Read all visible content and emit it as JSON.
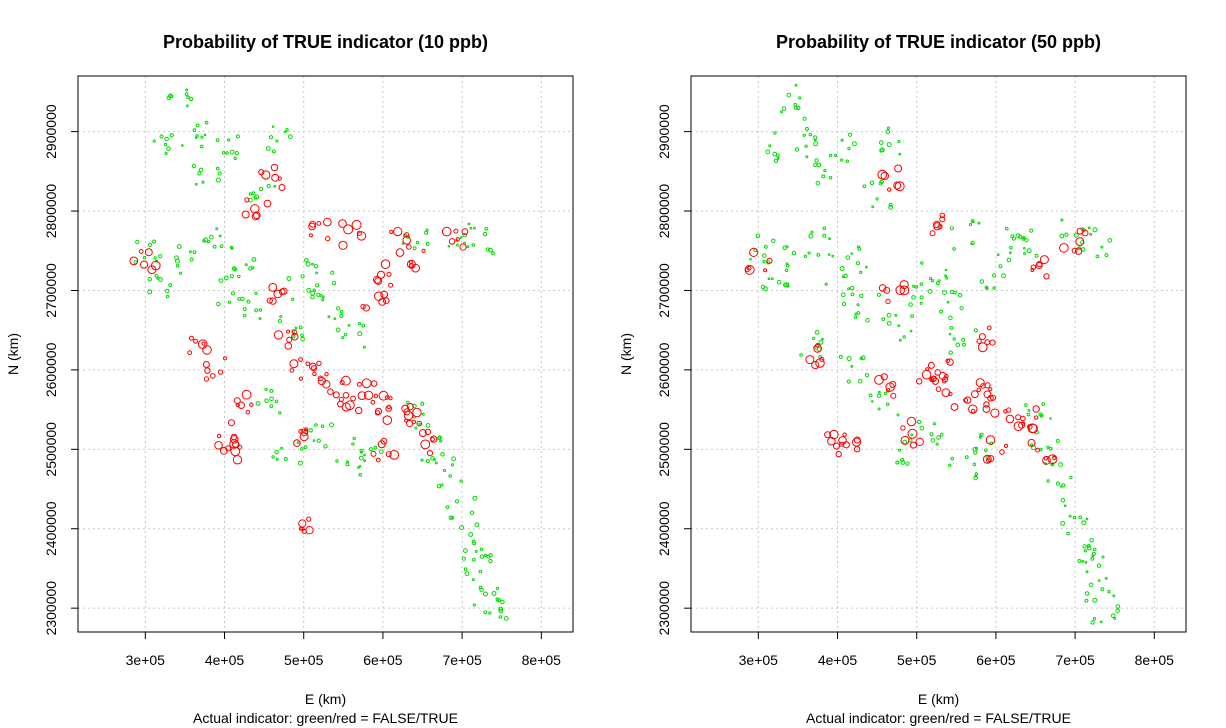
{
  "chart_data": [
    {
      "type": "scatter",
      "title": "Probability of TRUE indicator (10 ppb)",
      "xlabel": "E (km)",
      "ylabel": "N (km)",
      "subtitle": "Actual indicator: green/red = FALSE/TRUE",
      "xlim": [
        215000,
        840000
      ],
      "ylim": [
        2270000,
        2970000
      ],
      "xticks": [
        300000,
        400000,
        500000,
        600000,
        700000,
        800000
      ],
      "xtick_labels": [
        "3e+05",
        "4e+05",
        "5e+05",
        "6e+05",
        "7e+05",
        "8e+05"
      ],
      "yticks": [
        2300000,
        2400000,
        2500000,
        2600000,
        2700000,
        2800000,
        2900000
      ],
      "ytick_labels": [
        "2300000",
        "2400000",
        "2500000",
        "2600000",
        "2700000",
        "2800000",
        "2900000"
      ],
      "grid": true,
      "series": [
        {
          "color": "#00dd00",
          "points": [
            [
              300000,
              2750000
            ],
            [
              340000,
              2940000
            ],
            [
              330000,
              2880000
            ],
            [
              360000,
              2900000
            ],
            [
              380000,
              2850000
            ],
            [
              410000,
              2880000
            ],
            [
              320000,
              2700000
            ],
            [
              350000,
              2740000
            ],
            [
              380000,
              2760000
            ],
            [
              400000,
              2700000
            ],
            [
              420000,
              2740000
            ],
            [
              440000,
              2680000
            ],
            [
              480000,
              2650000
            ],
            [
              500000,
              2700000
            ],
            [
              520000,
              2720000
            ],
            [
              540000,
              2680000
            ],
            [
              560000,
              2640000
            ],
            [
              460000,
              2560000
            ],
            [
              480000,
              2500000
            ],
            [
              520000,
              2520000
            ],
            [
              560000,
              2480000
            ],
            [
              580000,
              2500000
            ],
            [
              660000,
              2500000
            ],
            [
              680000,
              2470000
            ],
            [
              700000,
              2420000
            ],
            [
              710000,
              2380000
            ],
            [
              720000,
              2350000
            ],
            [
              730000,
              2320000
            ],
            [
              740000,
              2300000
            ],
            [
              650000,
              2540000
            ],
            [
              640000,
              2760000
            ],
            [
              700000,
              2770000
            ],
            [
              730000,
              2760000
            ],
            [
              470000,
              2890000
            ],
            [
              450000,
              2820000
            ]
          ]
        },
        {
          "color": "#ff0000",
          "points": [
            [
              300000,
              2740000
            ],
            [
              370000,
              2630000
            ],
            [
              390000,
              2600000
            ],
            [
              400000,
              2520000
            ],
            [
              410000,
              2500000
            ],
            [
              420000,
              2560000
            ],
            [
              440000,
              2800000
            ],
            [
              460000,
              2840000
            ],
            [
              470000,
              2700000
            ],
            [
              480000,
              2640000
            ],
            [
              490000,
              2520000
            ],
            [
              500000,
              2600000
            ],
            [
              520000,
              2600000
            ],
            [
              540000,
              2580000
            ],
            [
              560000,
              2560000
            ],
            [
              580000,
              2580000
            ],
            [
              600000,
              2560000
            ],
            [
              620000,
              2540000
            ],
            [
              640000,
              2540000
            ],
            [
              590000,
              2680000
            ],
            [
              600000,
              2720000
            ],
            [
              620000,
              2760000
            ],
            [
              650000,
              2740000
            ],
            [
              690000,
              2760000
            ],
            [
              520000,
              2780000
            ],
            [
              560000,
              2770000
            ],
            [
              600000,
              2500000
            ],
            [
              660000,
              2510000
            ],
            [
              510000,
              2410000
            ]
          ]
        }
      ]
    },
    {
      "type": "scatter",
      "title": "Probability of TRUE indicator (50 ppb)",
      "xlabel": "E (km)",
      "ylabel": "N (km)",
      "subtitle": "Actual indicator: green/red = FALSE/TRUE",
      "xlim": [
        215000,
        840000
      ],
      "ylim": [
        2270000,
        2970000
      ],
      "xticks": [
        300000,
        400000,
        500000,
        600000,
        700000,
        800000
      ],
      "xtick_labels": [
        "3e+05",
        "4e+05",
        "5e+05",
        "6e+05",
        "7e+05",
        "8e+05"
      ],
      "yticks": [
        2300000,
        2400000,
        2500000,
        2600000,
        2700000,
        2800000,
        2900000
      ],
      "ytick_labels": [
        "2300000",
        "2400000",
        "2500000",
        "2600000",
        "2700000",
        "2800000",
        "2900000"
      ],
      "grid": true,
      "series": [
        {
          "color": "#00dd00",
          "points": [
            [
              300000,
              2750000
            ],
            [
              340000,
              2940000
            ],
            [
              330000,
              2880000
            ],
            [
              360000,
              2900000
            ],
            [
              380000,
              2850000
            ],
            [
              410000,
              2880000
            ],
            [
              320000,
              2700000
            ],
            [
              350000,
              2740000
            ],
            [
              380000,
              2760000
            ],
            [
              400000,
              2700000
            ],
            [
              420000,
              2740000
            ],
            [
              440000,
              2680000
            ],
            [
              480000,
              2650000
            ],
            [
              500000,
              2700000
            ],
            [
              520000,
              2720000
            ],
            [
              540000,
              2680000
            ],
            [
              560000,
              2640000
            ],
            [
              460000,
              2560000
            ],
            [
              480000,
              2500000
            ],
            [
              520000,
              2520000
            ],
            [
              560000,
              2480000
            ],
            [
              580000,
              2500000
            ],
            [
              660000,
              2500000
            ],
            [
              680000,
              2470000
            ],
            [
              700000,
              2420000
            ],
            [
              710000,
              2380000
            ],
            [
              720000,
              2350000
            ],
            [
              730000,
              2320000
            ],
            [
              740000,
              2300000
            ],
            [
              650000,
              2540000
            ],
            [
              640000,
              2760000
            ],
            [
              700000,
              2770000
            ],
            [
              730000,
              2760000
            ],
            [
              470000,
              2890000
            ],
            [
              450000,
              2820000
            ],
            [
              600000,
              2720000
            ],
            [
              620000,
              2760000
            ],
            [
              560000,
              2770000
            ],
            [
              420000,
              2600000
            ],
            [
              370000,
              2630000
            ]
          ]
        },
        {
          "color": "#ff0000",
          "points": [
            [
              300000,
              2740000
            ],
            [
              380000,
              2620000
            ],
            [
              400000,
              2520000
            ],
            [
              410000,
              2500000
            ],
            [
              460000,
              2580000
            ],
            [
              470000,
              2700000
            ],
            [
              490000,
              2520000
            ],
            [
              510000,
              2600000
            ],
            [
              530000,
              2600000
            ],
            [
              540000,
              2580000
            ],
            [
              560000,
              2560000
            ],
            [
              580000,
              2580000
            ],
            [
              600000,
              2560000
            ],
            [
              620000,
              2540000
            ],
            [
              640000,
              2540000
            ],
            [
              590000,
              2640000
            ],
            [
              650000,
              2730000
            ],
            [
              700000,
              2760000
            ],
            [
              470000,
              2840000
            ],
            [
              530000,
              2780000
            ],
            [
              600000,
              2500000
            ],
            [
              660000,
              2500000
            ]
          ]
        }
      ]
    }
  ]
}
